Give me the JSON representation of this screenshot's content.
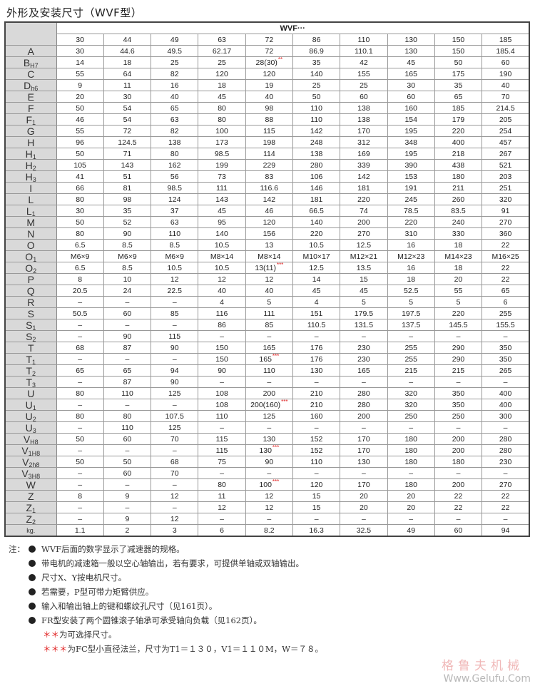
{
  "title": "外形及安装尺寸（WVF型）",
  "table": {
    "group_header": "WVF···",
    "sizes": [
      "30",
      "44",
      "49",
      "63",
      "72",
      "86",
      "110",
      "130",
      "150",
      "185"
    ],
    "rows": [
      {
        "label": "A",
        "sub": "",
        "cells": [
          "30",
          "44.6",
          "49.5",
          "62.17",
          "72",
          "86.9",
          "110.1",
          "130",
          "150",
          "185.4"
        ]
      },
      {
        "label": "B",
        "sub": "H7",
        "cells": [
          "14",
          "18",
          "25",
          "25",
          {
            "v": "28(30)",
            "mark": "**"
          },
          "35",
          "42",
          "45",
          "50",
          "60"
        ]
      },
      {
        "label": "C",
        "sub": "",
        "cells": [
          "55",
          "64",
          "82",
          "120",
          "120",
          "140",
          "155",
          "165",
          "175",
          "190"
        ]
      },
      {
        "label": "D",
        "sub": "h6",
        "cells": [
          "9",
          "11",
          "16",
          "18",
          "19",
          "25",
          "25",
          "30",
          "35",
          "40"
        ]
      },
      {
        "label": "E",
        "sub": "",
        "cells": [
          "20",
          "30",
          "40",
          "45",
          "40",
          "50",
          "60",
          "60",
          "65",
          "70"
        ]
      },
      {
        "label": "F",
        "sub": "",
        "cells": [
          "50",
          "54",
          "65",
          "80",
          "98",
          "110",
          "138",
          "160",
          "185",
          "214.5"
        ]
      },
      {
        "label": "F",
        "sub": "1",
        "cells": [
          "46",
          "54",
          "63",
          "80",
          "88",
          "110",
          "138",
          "154",
          "179",
          "205"
        ]
      },
      {
        "label": "G",
        "sub": "",
        "cells": [
          "55",
          "72",
          "82",
          "100",
          "115",
          "142",
          "170",
          "195",
          "220",
          "254"
        ]
      },
      {
        "label": "H",
        "sub": "",
        "cells": [
          "96",
          "124.5",
          "138",
          "173",
          "198",
          "248",
          "312",
          "348",
          "400",
          "457"
        ]
      },
      {
        "label": "H",
        "sub": "1",
        "cells": [
          "50",
          "71",
          "80",
          "98.5",
          "114",
          "138",
          "169",
          "195",
          "218",
          "267"
        ]
      },
      {
        "label": "H",
        "sub": "2",
        "cells": [
          "105",
          "143",
          "162",
          "199",
          "229",
          "280",
          "339",
          "390",
          "438",
          "521"
        ]
      },
      {
        "label": "H",
        "sub": "3",
        "cells": [
          "41",
          "51",
          "56",
          "73",
          "83",
          "106",
          "142",
          "153",
          "180",
          "203"
        ]
      },
      {
        "label": "I",
        "sub": "",
        "cells": [
          "66",
          "81",
          "98.5",
          "111",
          "116.6",
          "146",
          "181",
          "191",
          "211",
          "251"
        ]
      },
      {
        "label": "L",
        "sub": "",
        "cells": [
          "80",
          "98",
          "124",
          "143",
          "142",
          "181",
          "220",
          "245",
          "260",
          "320"
        ]
      },
      {
        "label": "L",
        "sub": "1",
        "cells": [
          "30",
          "35",
          "37",
          "45",
          "46",
          "66.5",
          "74",
          "78.5",
          "83.5",
          "91"
        ]
      },
      {
        "label": "M",
        "sub": "",
        "cells": [
          "50",
          "52",
          "63",
          "95",
          "120",
          "140",
          "200",
          "220",
          "240",
          "270"
        ]
      },
      {
        "label": "N",
        "sub": "",
        "cells": [
          "80",
          "90",
          "110",
          "140",
          "156",
          "220",
          "270",
          "310",
          "330",
          "360"
        ]
      },
      {
        "label": "O",
        "sub": "",
        "cells": [
          "6.5",
          "8.5",
          "8.5",
          "10.5",
          "13",
          "10.5",
          "12.5",
          "16",
          "18",
          "22"
        ]
      },
      {
        "label": "O",
        "sub": "1",
        "cells": [
          "M6×9",
          "M6×9",
          "M6×9",
          "M8×14",
          "M8×14",
          "M10×17",
          "M12×21",
          "M12×23",
          "M14×23",
          "M16×25"
        ]
      },
      {
        "label": "O",
        "sub": "2",
        "cells": [
          "6.5",
          "8.5",
          "10.5",
          "10.5",
          {
            "v": "13(11)",
            "mark": "***"
          },
          "12.5",
          "13.5",
          "16",
          "18",
          "22"
        ]
      },
      {
        "label": "P",
        "sub": "",
        "cells": [
          "8",
          "10",
          "12",
          "12",
          "12",
          "14",
          "15",
          "18",
          "20",
          "22"
        ]
      },
      {
        "label": "Q",
        "sub": "",
        "cells": [
          "20.5",
          "24",
          "22.5",
          "40",
          "40",
          "45",
          "45",
          "52.5",
          "55",
          "65"
        ]
      },
      {
        "label": "R",
        "sub": "",
        "cells": [
          "–",
          "–",
          "–",
          "4",
          "5",
          "4",
          "5",
          "5",
          "5",
          "6"
        ]
      },
      {
        "label": "S",
        "sub": "",
        "cells": [
          "50.5",
          "60",
          "85",
          "116",
          "111",
          "151",
          "179.5",
          "197.5",
          "220",
          "255"
        ]
      },
      {
        "label": "S",
        "sub": "1",
        "cells": [
          "–",
          "–",
          "–",
          "86",
          "85",
          "110.5",
          "131.5",
          "137.5",
          "145.5",
          "155.5"
        ]
      },
      {
        "label": "S",
        "sub": "2",
        "cells": [
          "–",
          "90",
          "115",
          "–",
          "–",
          "–",
          "–",
          "–",
          "–",
          "–"
        ]
      },
      {
        "label": "T",
        "sub": "",
        "cells": [
          "68",
          "87",
          "90",
          "150",
          "165",
          "176",
          "230",
          "255",
          "290",
          "350"
        ]
      },
      {
        "label": "T",
        "sub": "1",
        "cells": [
          "–",
          "–",
          "–",
          "150",
          {
            "v": "165",
            "mark": "***"
          },
          "176",
          "230",
          "255",
          "290",
          "350"
        ]
      },
      {
        "label": "T",
        "sub": "2",
        "cells": [
          "65",
          "65",
          "94",
          "90",
          "110",
          "130",
          "165",
          "215",
          "215",
          "265"
        ]
      },
      {
        "label": "T",
        "sub": "3",
        "cells": [
          "–",
          "87",
          "90",
          "–",
          "–",
          "–",
          "–",
          "–",
          "–",
          "–"
        ]
      },
      {
        "label": "U",
        "sub": "",
        "cells": [
          "80",
          "110",
          "125",
          "108",
          "200",
          "210",
          "280",
          "320",
          "350",
          "400"
        ]
      },
      {
        "label": "U",
        "sub": "1",
        "cells": [
          "–",
          "–",
          "–",
          "108",
          {
            "v": "200(160)",
            "mark": "***"
          },
          "210",
          "280",
          "320",
          "350",
          "400"
        ]
      },
      {
        "label": "U",
        "sub": "2",
        "cells": [
          "80",
          "80",
          "107.5",
          "110",
          "125",
          "160",
          "200",
          "250",
          "250",
          "300"
        ]
      },
      {
        "label": "U",
        "sub": "3",
        "cells": [
          "–",
          "110",
          "125",
          "–",
          "–",
          "–",
          "–",
          "–",
          "–",
          "–"
        ]
      },
      {
        "label": "V",
        "sub": "H8",
        "cells": [
          "50",
          "60",
          "70",
          "115",
          "130",
          "152",
          "170",
          "180",
          "200",
          "280"
        ]
      },
      {
        "label": "V",
        "sub": "1H8",
        "cells": [
          "–",
          "–",
          "–",
          "115",
          {
            "v": "130",
            "mark": "***"
          },
          "152",
          "170",
          "180",
          "200",
          "280"
        ]
      },
      {
        "label": "V",
        "sub": "2h8",
        "cells": [
          "50",
          "50",
          "68",
          "75",
          "90",
          "110",
          "130",
          "180",
          "180",
          "230"
        ]
      },
      {
        "label": "V",
        "sub": "3H8",
        "cells": [
          "–",
          "60",
          "70",
          "–",
          "–",
          "–",
          "–",
          "–",
          "–",
          "–"
        ]
      },
      {
        "label": "W",
        "sub": "",
        "cells": [
          "–",
          "–",
          "–",
          "80",
          {
            "v": "100",
            "mark": "***"
          },
          "120",
          "170",
          "180",
          "200",
          "270"
        ]
      },
      {
        "label": "Z",
        "sub": "",
        "cells": [
          "8",
          "9",
          "12",
          "11",
          "12",
          "15",
          "20",
          "20",
          "22",
          "22"
        ]
      },
      {
        "label": "Z",
        "sub": "1",
        "cells": [
          "–",
          "–",
          "–",
          "12",
          "12",
          "15",
          "20",
          "20",
          "22",
          "22"
        ]
      },
      {
        "label": "Z",
        "sub": "2",
        "cells": [
          "–",
          "9",
          "12",
          "–",
          "–",
          "–",
          "–",
          "–",
          "–",
          "–"
        ]
      },
      {
        "label": "kg.",
        "sub": "",
        "cells": [
          "1.1",
          "2",
          "3",
          "6",
          "8.2",
          "16.3",
          "32.5",
          "49",
          "60",
          "94"
        ]
      }
    ]
  },
  "notes": {
    "prefix": "注：",
    "bullets": [
      "WVF后面的数字显示了减速器的规格。",
      "带电机的减速箱一般以空心轴输出，若有要求，可提供单轴或双轴输出。",
      "尺寸X、Y按电机尺寸。",
      "若需要，P型可带力矩臂供应。",
      "输入和输出轴上的键和螺纹孔尺寸（见161页）。",
      "FR型安装了两个圆锥滚子轴承可承受轴向负载（见162页）。"
    ],
    "footnotes": [
      {
        "stars": "＊＊",
        "text": "为可选择尺寸。"
      },
      {
        "stars": "＊＊＊",
        "text": "为FC型小直径法兰，尺寸为T1＝１３０，V1＝１１０M，W＝７８。"
      }
    ]
  },
  "watermark": {
    "cn": "格鲁夫机械",
    "url": "Www.Gelufu.Com"
  },
  "colors": {
    "label_bg": "#d9d9d9",
    "mark": "#e02020"
  }
}
